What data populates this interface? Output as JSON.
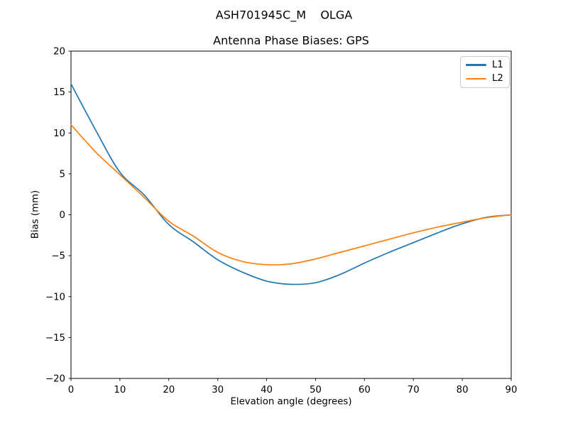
{
  "figure": {
    "suptitle": "ASH701945C_M    OLGA",
    "background_color": "#ffffff"
  },
  "chart_data": {
    "type": "line",
    "suptitle": "ASH701945C_M    OLGA",
    "title": "Antenna Phase Biases: GPS",
    "xlabel": "Elevation angle (degrees)",
    "ylabel": "Bias (mm)",
    "xlim": [
      0,
      90
    ],
    "ylim": [
      -20,
      20
    ],
    "x_ticks": [
      0,
      10,
      20,
      30,
      40,
      50,
      60,
      70,
      80,
      90
    ],
    "y_ticks": [
      -20,
      -15,
      -10,
      -5,
      0,
      5,
      10,
      15,
      20
    ],
    "grid": false,
    "axis_color": "#000000",
    "legend_position": "upper right",
    "legend_border_color": "#cccccc",
    "x": [
      0,
      5,
      10,
      15,
      20,
      25,
      30,
      35,
      40,
      45,
      50,
      55,
      60,
      65,
      70,
      75,
      80,
      85,
      90
    ],
    "series": [
      {
        "name": "L1",
        "color": "#1f77b4",
        "values": [
          16.0,
          10.4,
          5.2,
          2.4,
          -1.2,
          -3.3,
          -5.5,
          -7.0,
          -8.1,
          -8.5,
          -8.3,
          -7.3,
          -5.9,
          -4.6,
          -3.4,
          -2.2,
          -1.1,
          -0.3,
          0.0
        ]
      },
      {
        "name": "L2",
        "color": "#ff7f0e",
        "values": [
          11.0,
          7.7,
          4.9,
          2.1,
          -0.8,
          -2.6,
          -4.6,
          -5.7,
          -6.1,
          -6.0,
          -5.4,
          -4.6,
          -3.8,
          -3.0,
          -2.2,
          -1.5,
          -0.9,
          -0.35,
          0.0
        ]
      }
    ]
  }
}
